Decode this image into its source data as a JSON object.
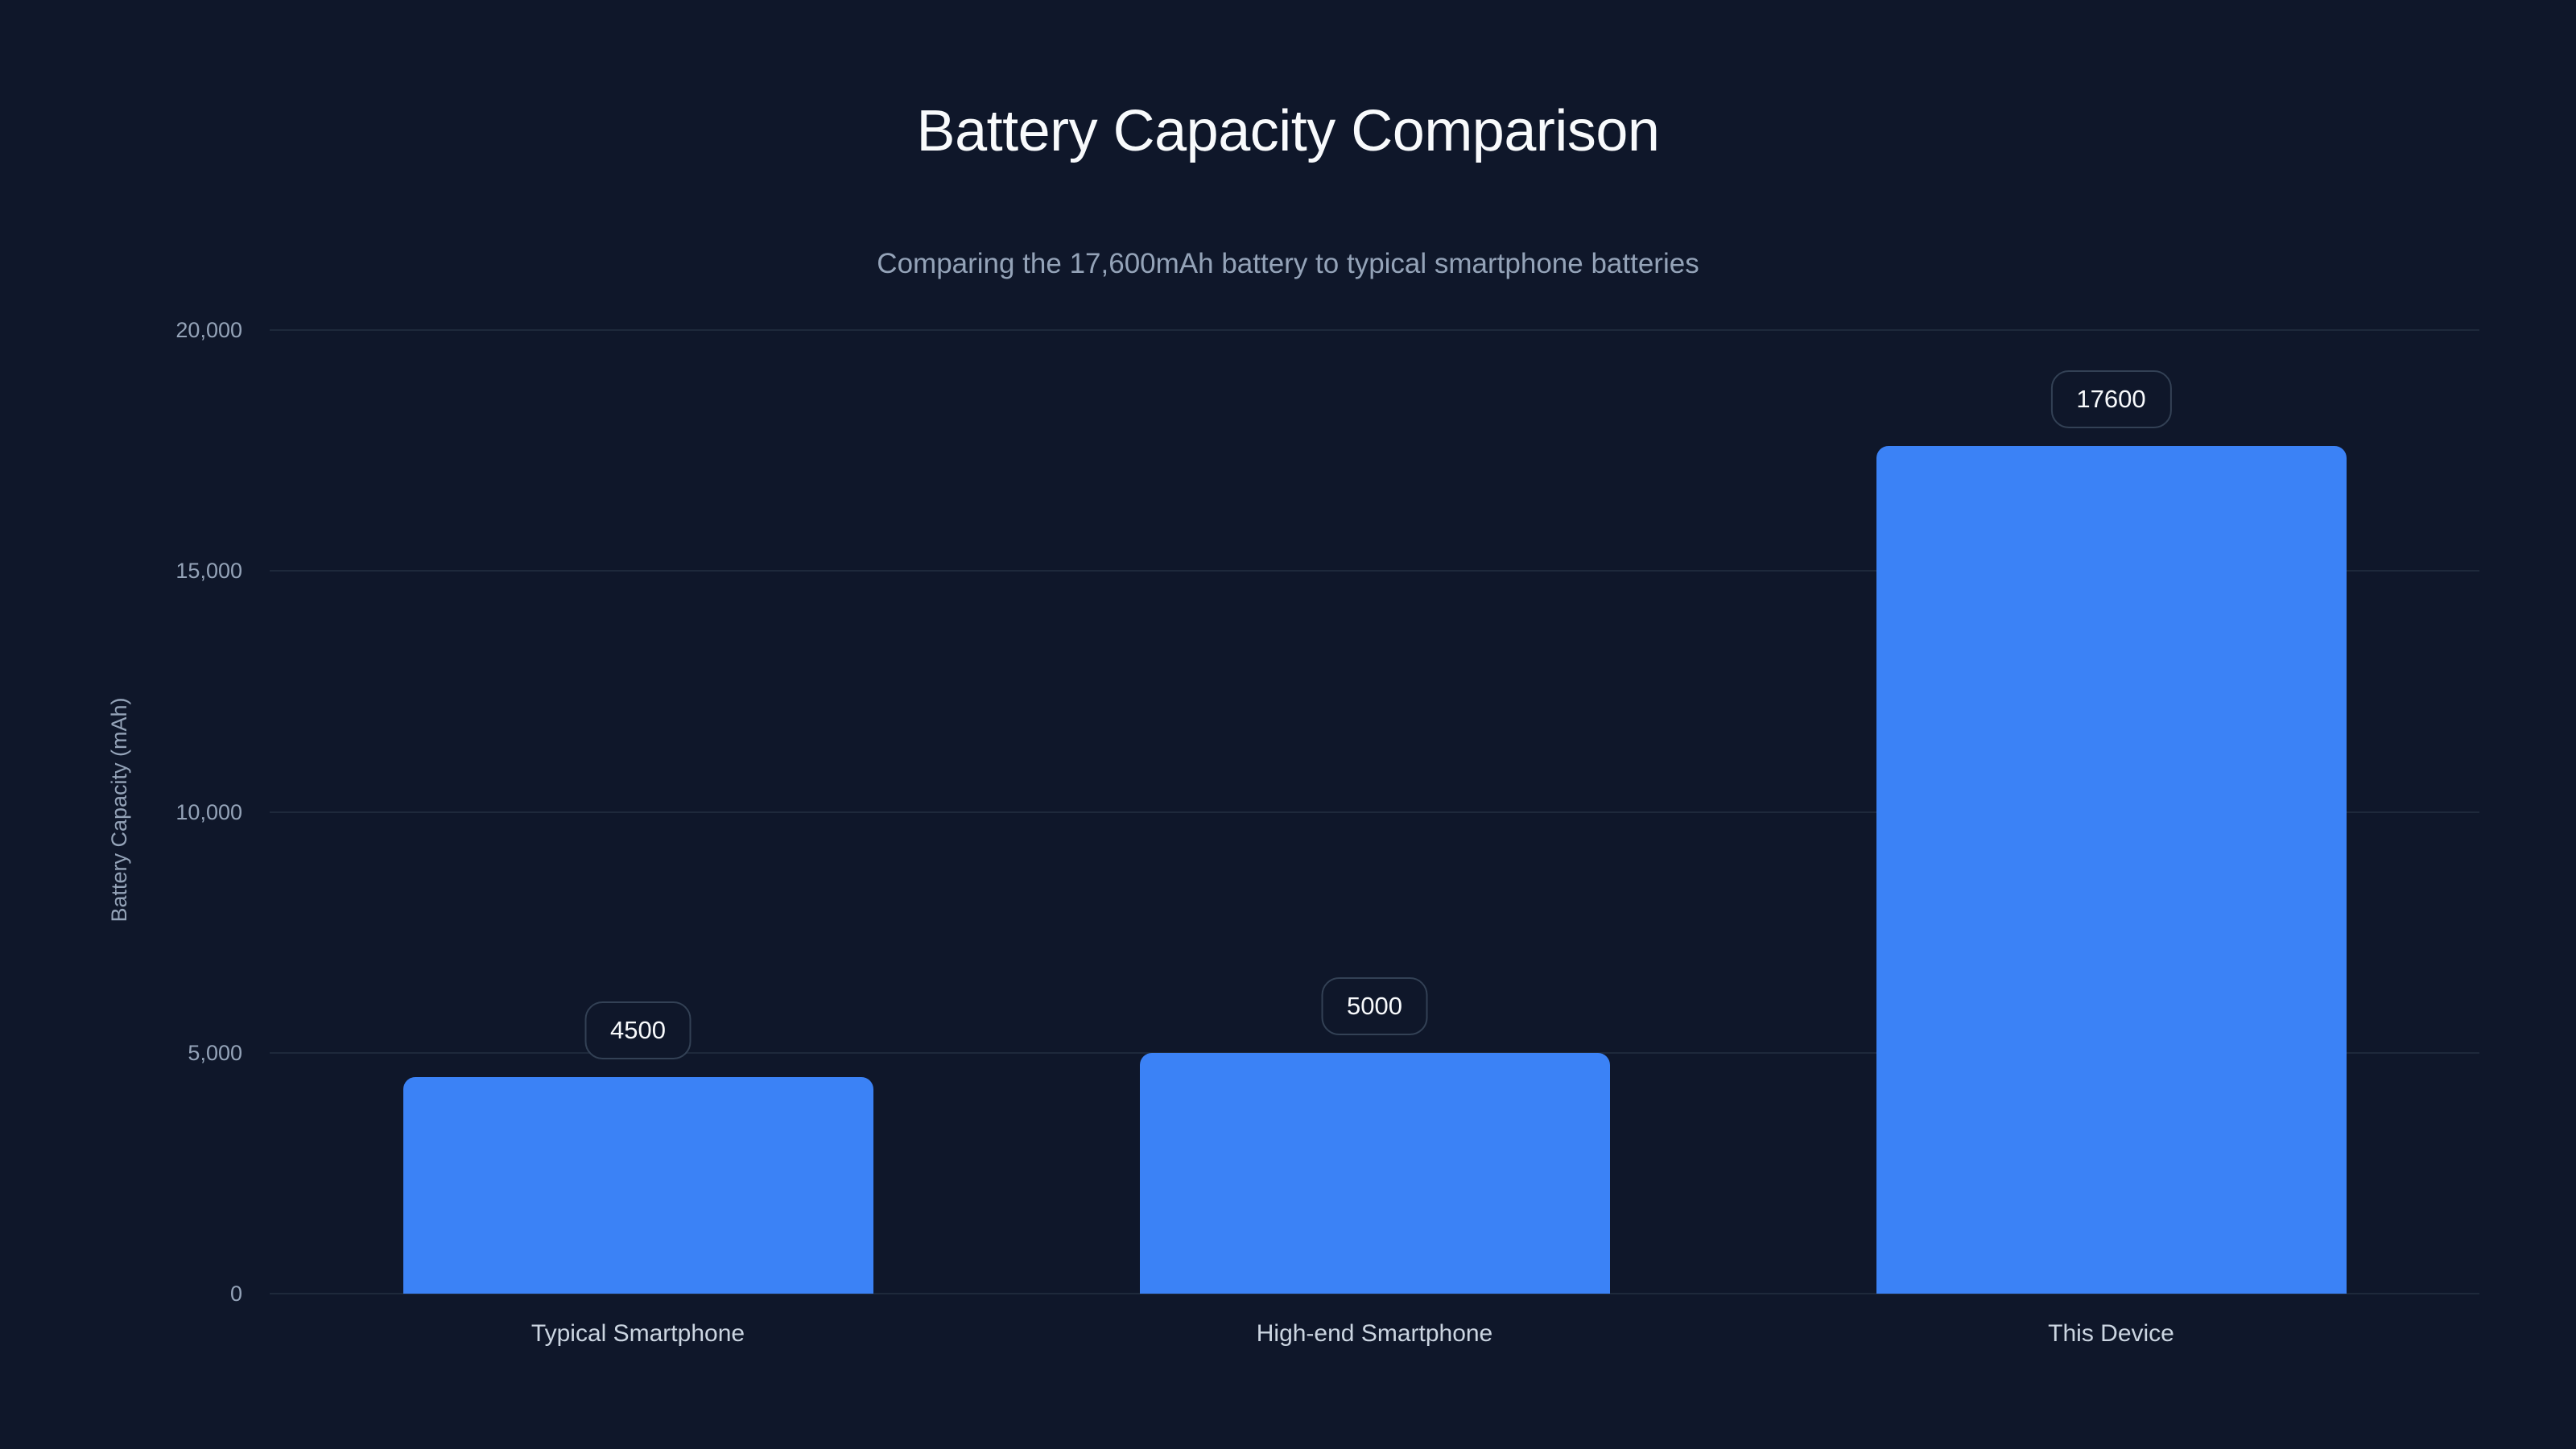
{
  "title": "Battery Capacity Comparison",
  "subtitle": "Comparing the 17,600mAh battery to typical smartphone batteries",
  "colors": {
    "background": "#0f172a",
    "bar": "#3b82f6",
    "gridline": "#1e293b",
    "label_border": "#334155"
  },
  "y_axis": {
    "title": "Battery Capacity (mAh)",
    "ticks": [
      {
        "value": 0,
        "label": "0"
      },
      {
        "value": 5000,
        "label": "5,000"
      },
      {
        "value": 10000,
        "label": "10,000"
      },
      {
        "value": 15000,
        "label": "15,000"
      },
      {
        "value": 20000,
        "label": "20,000"
      }
    ]
  },
  "bars": [
    {
      "category": "Typical Smartphone",
      "value": 4500,
      "label": "4500"
    },
    {
      "category": "High-end Smartphone",
      "value": 5000,
      "label": "5000"
    },
    {
      "category": "This Device",
      "value": 17600,
      "label": "17600"
    }
  ],
  "chart_data": {
    "type": "bar",
    "title": "Battery Capacity Comparison",
    "subtitle": "Comparing the 17,600mAh battery to typical smartphone batteries",
    "categories": [
      "Typical Smartphone",
      "High-end Smartphone",
      "This Device"
    ],
    "values": [
      4500,
      5000,
      17600
    ],
    "data_labels": [
      "4500",
      "5000",
      "17600"
    ],
    "xlabel": "",
    "ylabel": "Battery Capacity (mAh)",
    "ylim": [
      0,
      20000
    ],
    "yticks": [
      0,
      5000,
      10000,
      15000,
      20000
    ],
    "ytick_labels": [
      "0",
      "5,000",
      "10,000",
      "15,000",
      "20,000"
    ],
    "grid": "horizontal",
    "legend": "none",
    "bar_color": "#3b82f6"
  }
}
